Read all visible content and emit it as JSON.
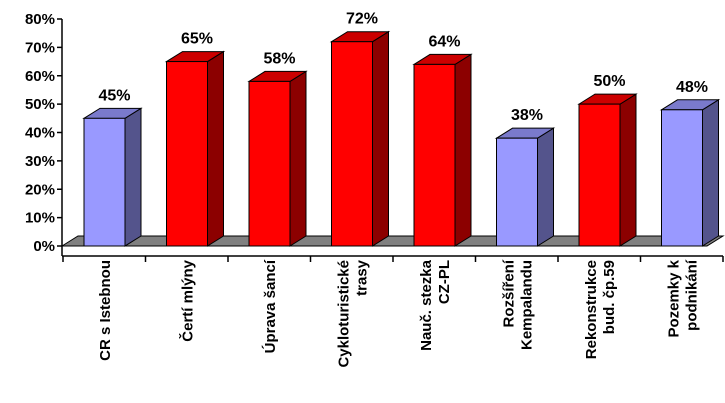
{
  "chart_data": {
    "type": "bar",
    "bar_style": "3d",
    "categories": [
      [
        "CR s Istebnou"
      ],
      [
        "Čertí mlýny"
      ],
      [
        "Úprava šancí"
      ],
      [
        "Cykloturistické",
        "trasy"
      ],
      [
        "Nauč. stezka",
        "CZ-PL"
      ],
      [
        "Rozšíření",
        "Kempalandu"
      ],
      [
        "Rekonstrukce",
        "bud. čp.59"
      ],
      [
        "Pozemky k",
        "podnikání"
      ]
    ],
    "values": [
      45,
      65,
      58,
      72,
      64,
      38,
      50,
      48
    ],
    "data_labels": [
      "45%",
      "65%",
      "58%",
      "72%",
      "64%",
      "38%",
      "50%",
      "48%"
    ],
    "bar_colors": [
      "#9999ff",
      "#ff0000",
      "#ff0000",
      "#ff0000",
      "#ff0000",
      "#9999ff",
      "#ff0000",
      "#9999ff"
    ],
    "ylim": [
      0,
      80
    ],
    "y_ticks": [
      "0%",
      "10%",
      "20%",
      "30%",
      "40%",
      "50%",
      "60%",
      "70%",
      "80%"
    ],
    "grid": false,
    "legend": "none",
    "title": "",
    "xlabel": "",
    "ylabel": ""
  }
}
